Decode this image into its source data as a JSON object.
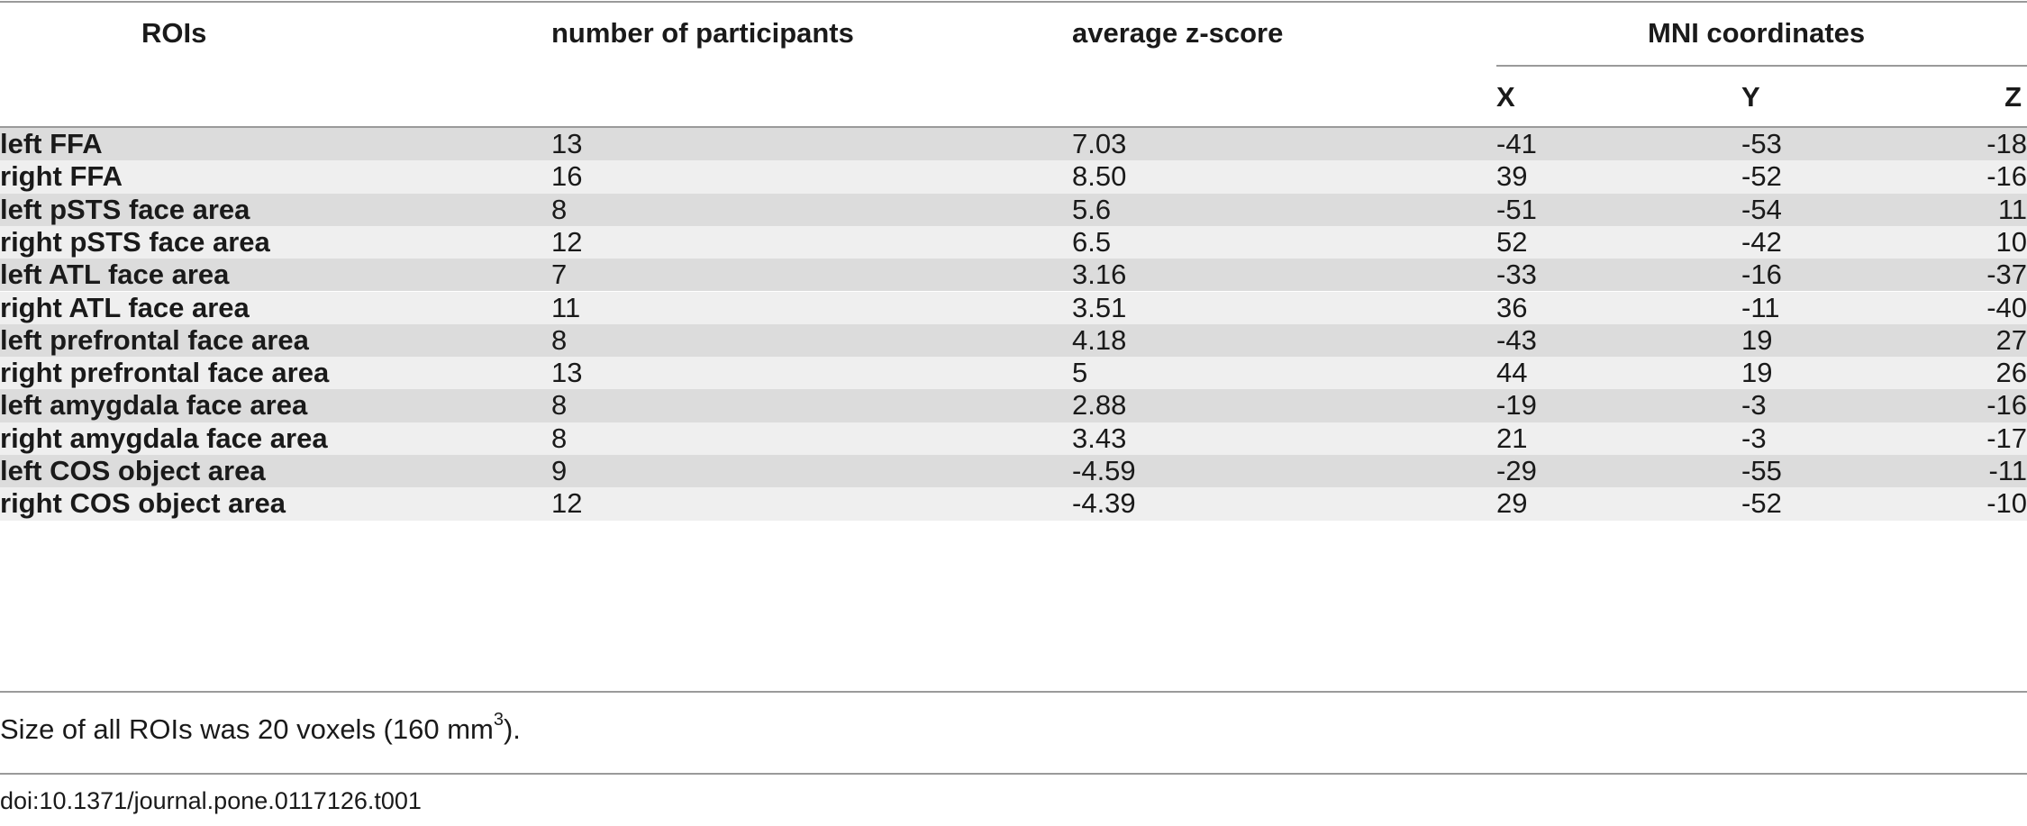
{
  "table": {
    "headers": {
      "roi": "ROIs",
      "participants": "number of participants",
      "zscore": "average z-score",
      "mni": "MNI coordinates",
      "x": "X",
      "y": "Y",
      "z": "Z"
    },
    "rows": [
      {
        "roi": "left FFA",
        "n": "13",
        "z": "7.03",
        "x": "-41",
        "y": "-53",
        "zc": "-18"
      },
      {
        "roi": "right FFA",
        "n": "16",
        "z": "8.50",
        "x": "39",
        "y": "-52",
        "zc": "-16"
      },
      {
        "roi": "left pSTS face area",
        "n": "8",
        "z": "5.6",
        "x": "-51",
        "y": "-54",
        "zc": "11"
      },
      {
        "roi": "right pSTS face area",
        "n": "12",
        "z": "6.5",
        "x": "52",
        "y": "-42",
        "zc": "10"
      },
      {
        "roi": "left ATL face area",
        "n": "7",
        "z": "3.16",
        "x": "-33",
        "y": "-16",
        "zc": "-37"
      },
      {
        "roi": "right ATL face area",
        "n": "11",
        "z": "3.51",
        "x": "36",
        "y": "-11",
        "zc": "-40"
      },
      {
        "roi": "left prefrontal face area",
        "n": "8",
        "z": "4.18",
        "x": "-43",
        "y": "19",
        "zc": "27"
      },
      {
        "roi": "right prefrontal face area",
        "n": "13",
        "z": "5",
        "x": "44",
        "y": "19",
        "zc": "26"
      },
      {
        "roi": "left amygdala face area",
        "n": "8",
        "z": "2.88",
        "x": "-19",
        "y": "-3",
        "zc": "-16"
      },
      {
        "roi": "right amygdala face area",
        "n": "8",
        "z": "3.43",
        "x": "21",
        "y": "-3",
        "zc": "-17"
      },
      {
        "roi": "left COS object area",
        "n": "9",
        "z": "-4.59",
        "x": "-29",
        "y": "-55",
        "zc": "-11"
      },
      {
        "roi": "right COS object area",
        "n": "12",
        "z": "-4.39",
        "x": "29",
        "y": "-52",
        "zc": "-10"
      }
    ]
  },
  "footnote": {
    "text_before": "Size of all ROIs was 20 voxels (160 mm",
    "superscript": "3",
    "text_after": ")."
  },
  "doi": "doi:10.1371/journal.pone.0117126.t001"
}
